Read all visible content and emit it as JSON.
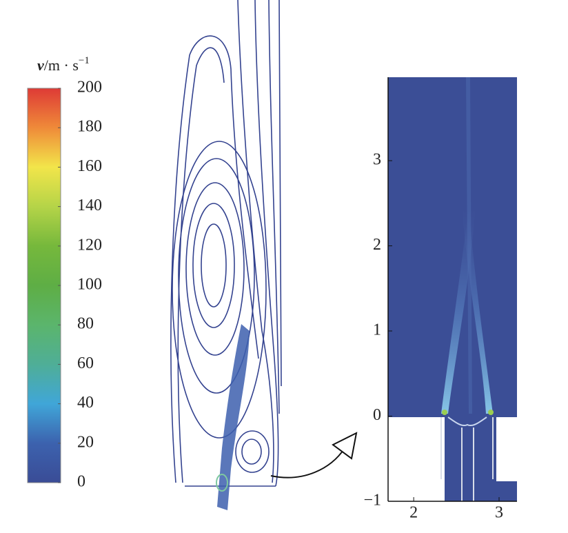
{
  "chart_data": [
    {
      "type": "colorbar",
      "label_symbol": "v",
      "label_unit": "/m · s",
      "label_exponent": "−1",
      "ylim": [
        0,
        200
      ],
      "yticks": [
        0,
        20,
        40,
        60,
        80,
        100,
        120,
        140,
        160,
        180,
        200
      ],
      "colors": [
        "#3a4c96",
        "#3c62ae",
        "#40a6d8",
        "#4fae97",
        "#5bb56c",
        "#5eae45",
        "#76b83c",
        "#b5d448",
        "#f2e54a",
        "#ef8a39",
        "#de3a36"
      ]
    },
    {
      "type": "contour",
      "xlim": [
        1.7,
        3.21
      ],
      "ylim": [
        -1,
        3.98
      ],
      "xticks": [
        2,
        3
      ],
      "yticks": [
        {
          "value": -1,
          "label": "−1"
        },
        0,
        1,
        2,
        3
      ]
    }
  ]
}
